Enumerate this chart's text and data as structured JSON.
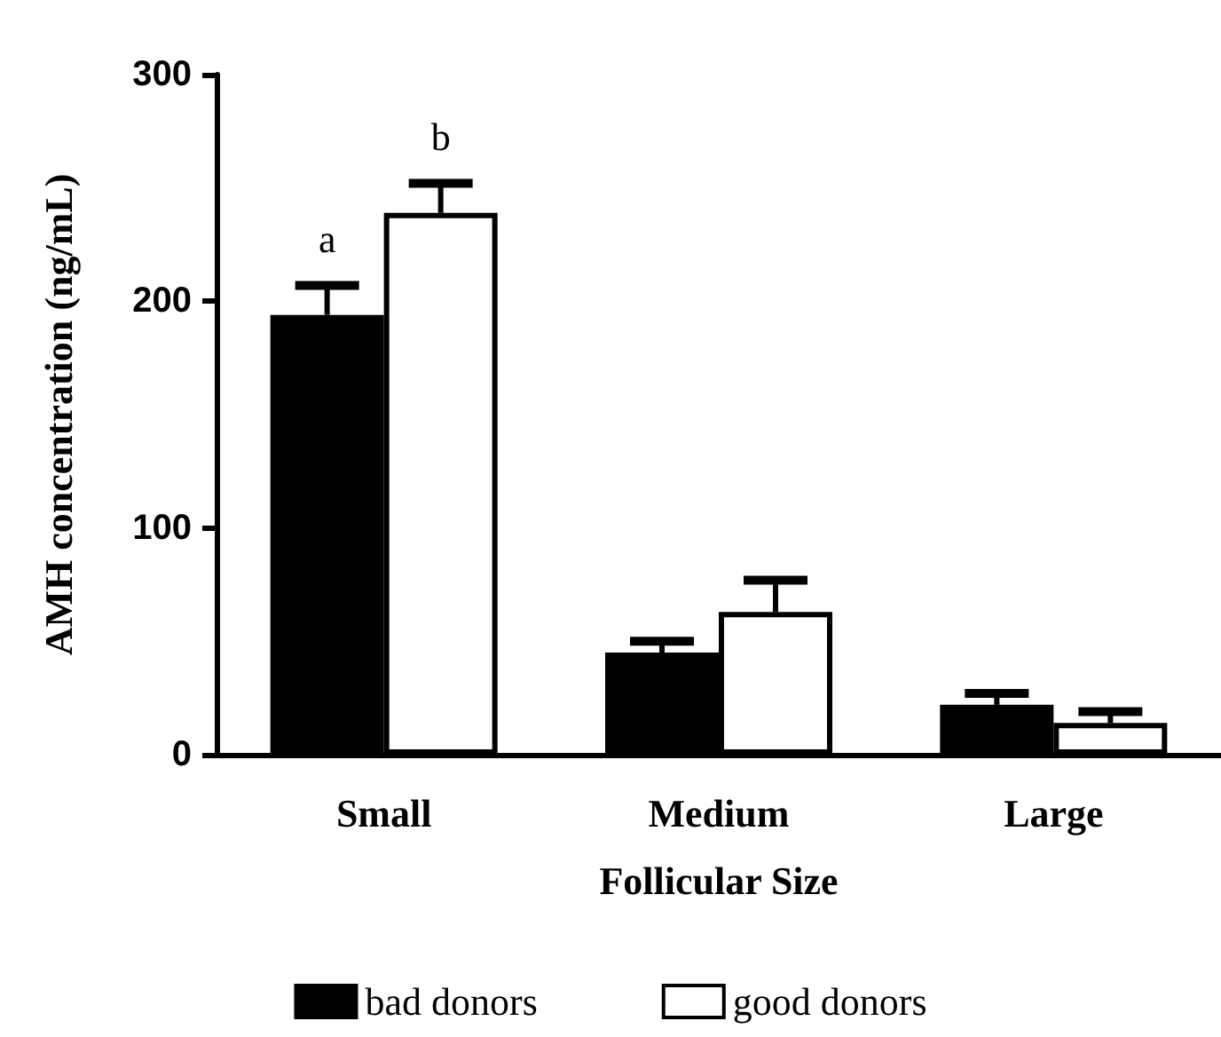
{
  "chart_data": {
    "type": "bar",
    "xlabel": "Follicular Size",
    "ylabel": "AMH concentration (ng/mL)",
    "categories": [
      "Small",
      "Medium",
      "Large"
    ],
    "series": [
      {
        "name": "bad donors",
        "color": "#000000",
        "values": [
          194,
          45,
          22
        ],
        "errors": [
          13,
          5,
          5
        ]
      },
      {
        "name": "good donors",
        "color": "#ffffff",
        "values": [
          239,
          63,
          14
        ],
        "errors": [
          13,
          14,
          5
        ]
      }
    ],
    "ylim": [
      0,
      300
    ],
    "yticks": [
      0,
      100,
      200,
      300
    ],
    "grid": false,
    "legend": "bottom",
    "annotations": [
      "a",
      "b"
    ]
  }
}
